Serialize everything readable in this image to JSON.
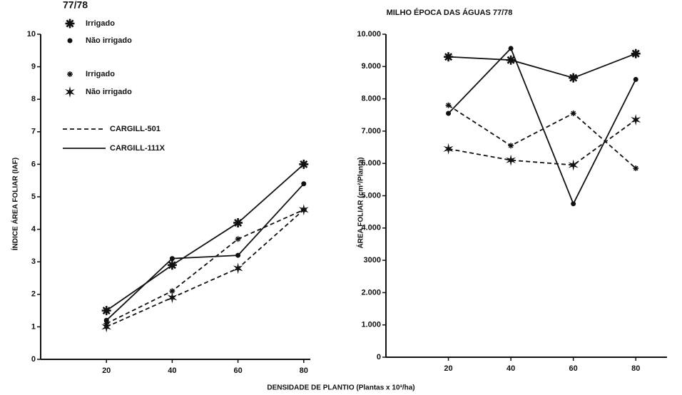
{
  "header_text": "77/78",
  "title": "MILHO ÉPOCA DAS ÁGUAS 77/78",
  "x_label": "DENSIDADE DE PLANTIO (Plantas x 10³/ha)",
  "chart_data": [
    {
      "type": "line",
      "y_label": "ÍNDICE ÁREA FOLIAR (IAF)",
      "x": [
        20,
        40,
        60,
        80
      ],
      "xlim": [
        0,
        82
      ],
      "xticks": [
        20,
        40,
        60,
        80
      ],
      "ylim": [
        0,
        10
      ],
      "yticks": [
        0,
        1,
        2,
        3,
        4,
        5,
        6,
        7,
        8,
        9,
        10
      ],
      "series": [
        {
          "name": "Irrigado",
          "marker": "asterisk-large",
          "style": "solid",
          "color": "#111111",
          "values": [
            1.5,
            2.9,
            4.2,
            6.0
          ]
        },
        {
          "name": "Não irrigado",
          "marker": "dot",
          "style": "solid",
          "color": "#111111",
          "values": [
            1.2,
            3.1,
            3.2,
            5.4
          ]
        },
        {
          "name": "Irrigado",
          "marker": "asterisk-small",
          "style": "dashed",
          "color": "#111111",
          "values": [
            1.1,
            2.1,
            3.7,
            4.6
          ]
        },
        {
          "name": "Não irrigado",
          "marker": "star",
          "style": "dashed",
          "color": "#111111",
          "values": [
            1.0,
            1.9,
            2.8,
            4.6
          ]
        }
      ],
      "line_legend": [
        {
          "label": "CARGILL-501",
          "style": "dashed"
        },
        {
          "label": "CARGILL-111X",
          "style": "solid"
        }
      ]
    },
    {
      "type": "line",
      "y_label": "ÁREA FOLIAR (cm²/Planta)",
      "x": [
        20,
        40,
        60,
        80
      ],
      "xlim": [
        0,
        90
      ],
      "xticks": [
        20,
        40,
        60,
        80
      ],
      "ylim": [
        0,
        10000
      ],
      "yticks": [
        0,
        {
          "value": 1000,
          "label": "1.000"
        },
        {
          "value": 2000,
          "label": "2.000"
        },
        {
          "value": 3000,
          "label": "3000"
        },
        {
          "value": 4000,
          "label": "4.000"
        },
        {
          "value": 5000,
          "label": "5.000"
        },
        {
          "value": 6000,
          "label": "6.000"
        },
        {
          "value": 7000,
          "label": "7.000"
        },
        {
          "value": 8000,
          "label": "8.000"
        },
        {
          "value": 9000,
          "label": "9.000"
        },
        {
          "value": 10000,
          "label": "10.000"
        }
      ],
      "series": [
        {
          "marker": "asterisk-large",
          "style": "solid",
          "color": "#111111",
          "values": [
            9300,
            9200,
            8650,
            9400
          ]
        },
        {
          "marker": "dot",
          "style": "solid",
          "color": "#111111",
          "values": [
            7550,
            9560,
            4750,
            8600
          ]
        },
        {
          "marker": "asterisk-small",
          "style": "dashed",
          "color": "#111111",
          "values": [
            7800,
            6550,
            7550,
            5850
          ]
        },
        {
          "marker": "star",
          "style": "dashed",
          "color": "#111111",
          "values": [
            6450,
            6100,
            5950,
            7350
          ]
        }
      ]
    }
  ]
}
